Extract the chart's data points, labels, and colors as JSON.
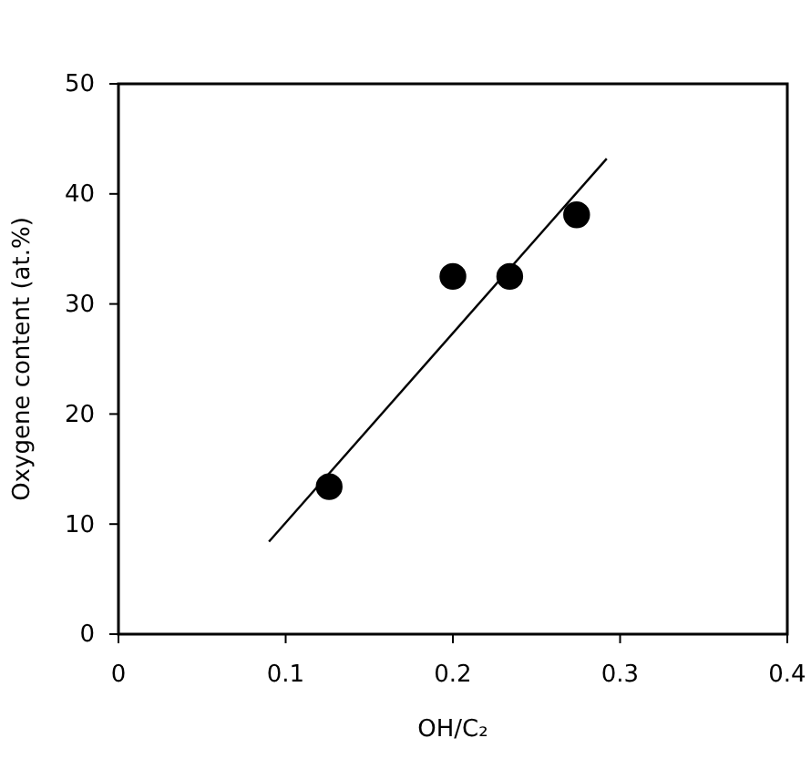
{
  "chart_data": {
    "type": "scatter",
    "xlabel": "OH/C₂",
    "ylabel": "Oxygene content (at.%)",
    "xlim": [
      0,
      0.4
    ],
    "xticks": [
      0,
      0.1,
      0.2,
      0.3,
      0.4
    ],
    "ylim": [
      0,
      50
    ],
    "yticks": [
      0,
      10,
      20,
      30,
      40,
      50
    ],
    "series": [
      {
        "color": "#000000",
        "marker": "circle",
        "x": [
          0.126,
          0.2,
          0.234,
          0.274
        ],
        "values": [
          13.4,
          32.5,
          32.5,
          38.1
        ]
      },
      {
        "type": "line",
        "color": "#000000",
        "line_style": "solid",
        "x": [
          0.09,
          0.292
        ],
        "values": [
          8.4,
          43.2
        ]
      }
    ]
  }
}
